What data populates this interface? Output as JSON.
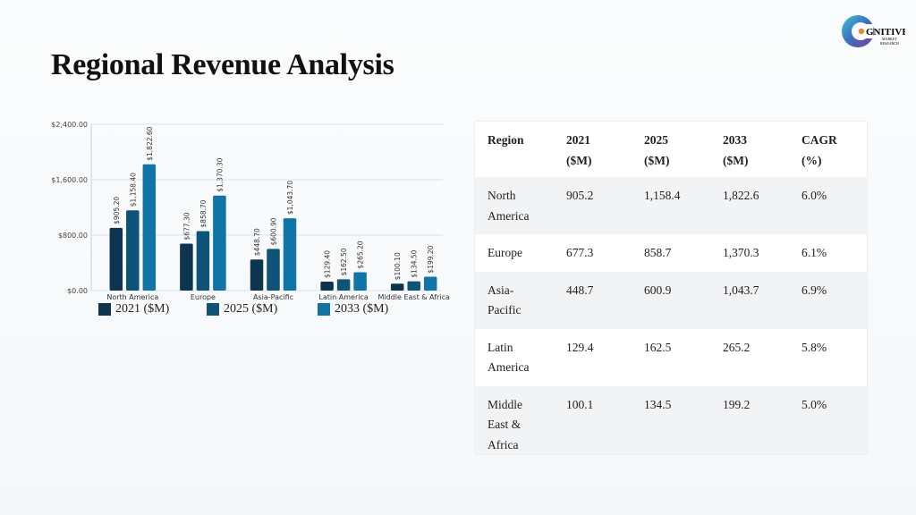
{
  "page": {
    "title": "Regional Revenue Analysis"
  },
  "logo": {
    "word": "GNITIVE",
    "line1": "MARKET",
    "line2": "RESEARCH"
  },
  "colors": {
    "s2021": "#0d3550",
    "s2025": "#0e5478",
    "s2033": "#0f75a8",
    "grid": "#dde2e7"
  },
  "chart_data": {
    "type": "bar",
    "categories": [
      "North America",
      "Europe",
      "Asia-Pacific",
      "Latin America",
      "Middle East & Africa"
    ],
    "series": [
      {
        "name": "2021 ($M)",
        "values": [
          905.2,
          677.3,
          448.7,
          129.4,
          100.1
        ],
        "labels": [
          "$905.20",
          "$677.30",
          "$448.70",
          "$129.40",
          "$100.10"
        ]
      },
      {
        "name": "2025 ($M)",
        "values": [
          1158.4,
          858.7,
          600.9,
          162.5,
          134.5
        ],
        "labels": [
          "$1,158.40",
          "$858.70",
          "$600.90",
          "$162.50",
          "$134.50"
        ]
      },
      {
        "name": "2033 ($M)",
        "values": [
          1822.6,
          1370.3,
          1043.7,
          265.2,
          199.2
        ],
        "labels": [
          "$1,822.60",
          "$1,370.30",
          "$1,043.70",
          "$265.20",
          "$199.20"
        ]
      }
    ],
    "yticks": [
      0,
      800,
      1600,
      2400
    ],
    "ytick_labels": [
      "$0.00",
      "$800.00",
      "$1,600.00",
      "$2,400.00"
    ],
    "ylim": [
      0,
      2400
    ],
    "grid": true,
    "legend_position": "bottom"
  },
  "table": {
    "headers": [
      [
        "Region"
      ],
      [
        "2021",
        "($M)"
      ],
      [
        "2025",
        "($M)"
      ],
      [
        "2033",
        "($M)"
      ],
      [
        "CAGR",
        "(%)"
      ]
    ],
    "rows": [
      [
        [
          "North",
          "America"
        ],
        "905.2",
        "1,158.4",
        "1,822.6",
        "6.0%"
      ],
      [
        [
          "Europe"
        ],
        "677.3",
        "858.7",
        "1,370.3",
        "6.1%"
      ],
      [
        [
          "Asia-",
          "Pacific"
        ],
        "448.7",
        "600.9",
        "1,043.7",
        "6.9%"
      ],
      [
        [
          "Latin",
          "America"
        ],
        "129.4",
        "162.5",
        "265.2",
        "5.8%"
      ],
      [
        [
          "Middle",
          "East &",
          "Africa"
        ],
        "100.1",
        "134.5",
        "199.2",
        "5.0%"
      ]
    ]
  }
}
